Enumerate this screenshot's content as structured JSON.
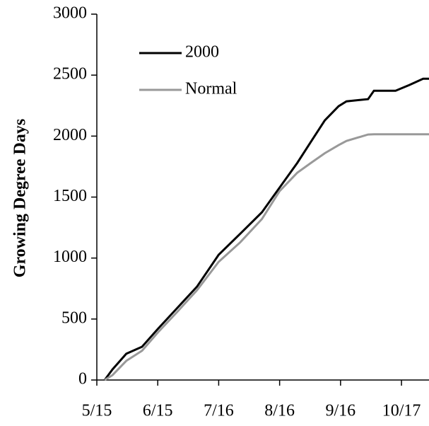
{
  "chart_data": {
    "type": "line",
    "y_label": "Growing Degree Days",
    "x": [
      "5/19",
      "5/23",
      "5/30",
      "6/7",
      "6/15",
      "6/25",
      "7/5",
      "7/16",
      "7/27",
      "8/7",
      "8/16",
      "8/25",
      "9/1",
      "9/8",
      "9/15",
      "9/19",
      "9/30",
      "10/3",
      "10/14",
      "10/21",
      "10/28",
      "10/31"
    ],
    "series": [
      {
        "name": "2000",
        "color": "#000000",
        "values": [
          0,
          87,
          215,
          273,
          418,
          592,
          766,
          1027,
          1200,
          1375,
          1578,
          1781,
          1955,
          2129,
          2245,
          2285,
          2303,
          2372,
          2372,
          2419,
          2470,
          2470
        ]
      },
      {
        "name": "Normal",
        "color": "#999999",
        "values": [
          0,
          40,
          157,
          240,
          389,
          560,
          737,
          969,
          1130,
          1320,
          1549,
          1700,
          1781,
          1860,
          1926,
          1960,
          2013,
          2015,
          2015,
          2015,
          2015,
          2015
        ]
      }
    ],
    "xlim": [
      "5/15",
      "10/31"
    ],
    "xticks": [
      "5/15",
      "6/15",
      "7/16",
      "8/16",
      "9/16",
      "10/17"
    ],
    "ylim": [
      0,
      3000
    ],
    "yticks": [
      0,
      500,
      1000,
      1500,
      2000,
      2500,
      3000
    ],
    "grid": false,
    "legend": "upper-left"
  }
}
